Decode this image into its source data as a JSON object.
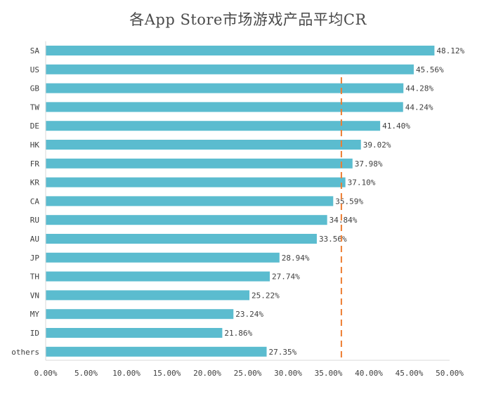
{
  "chart_data": {
    "type": "bar",
    "orientation": "horizontal",
    "title": "各App Store市场游戏产品平均CR",
    "categories": [
      "SA",
      "US",
      "GB",
      "TW",
      "DE",
      "HK",
      "FR",
      "KR",
      "CA",
      "RU",
      "AU",
      "JP",
      "TH",
      "VN",
      "MY",
      "ID",
      "others"
    ],
    "values": [
      48.12,
      45.56,
      44.28,
      44.24,
      41.4,
      39.02,
      37.98,
      37.1,
      35.59,
      34.84,
      33.56,
      28.94,
      27.74,
      25.22,
      23.24,
      21.86,
      27.35
    ],
    "data_labels": [
      "48.12%",
      "45.56%",
      "44.28%",
      "44.24%",
      "41.40%",
      "39.02%",
      "37.98%",
      "37.10%",
      "35.59%",
      "34.84%",
      "33.56%",
      "28.94%",
      "27.74%",
      "25.22%",
      "23.24%",
      "21.86%",
      "27.35%"
    ],
    "xlim": [
      0,
      50
    ],
    "x_ticks": [
      0,
      5,
      10,
      15,
      20,
      25,
      30,
      35,
      40,
      45,
      50
    ],
    "x_tick_labels": [
      "0.00%",
      "5.00%",
      "10.00%",
      "15.00%",
      "20.00%",
      "25.00%",
      "30.00%",
      "35.00%",
      "40.00%",
      "45.00%",
      "50.00%"
    ],
    "reference_line": 36.6,
    "grid": false,
    "legend": "none",
    "colors": {
      "bar": "#5bbccf",
      "reference_line": "#ed7d31",
      "axis": "#d9d9d9",
      "text": "#404040"
    }
  }
}
